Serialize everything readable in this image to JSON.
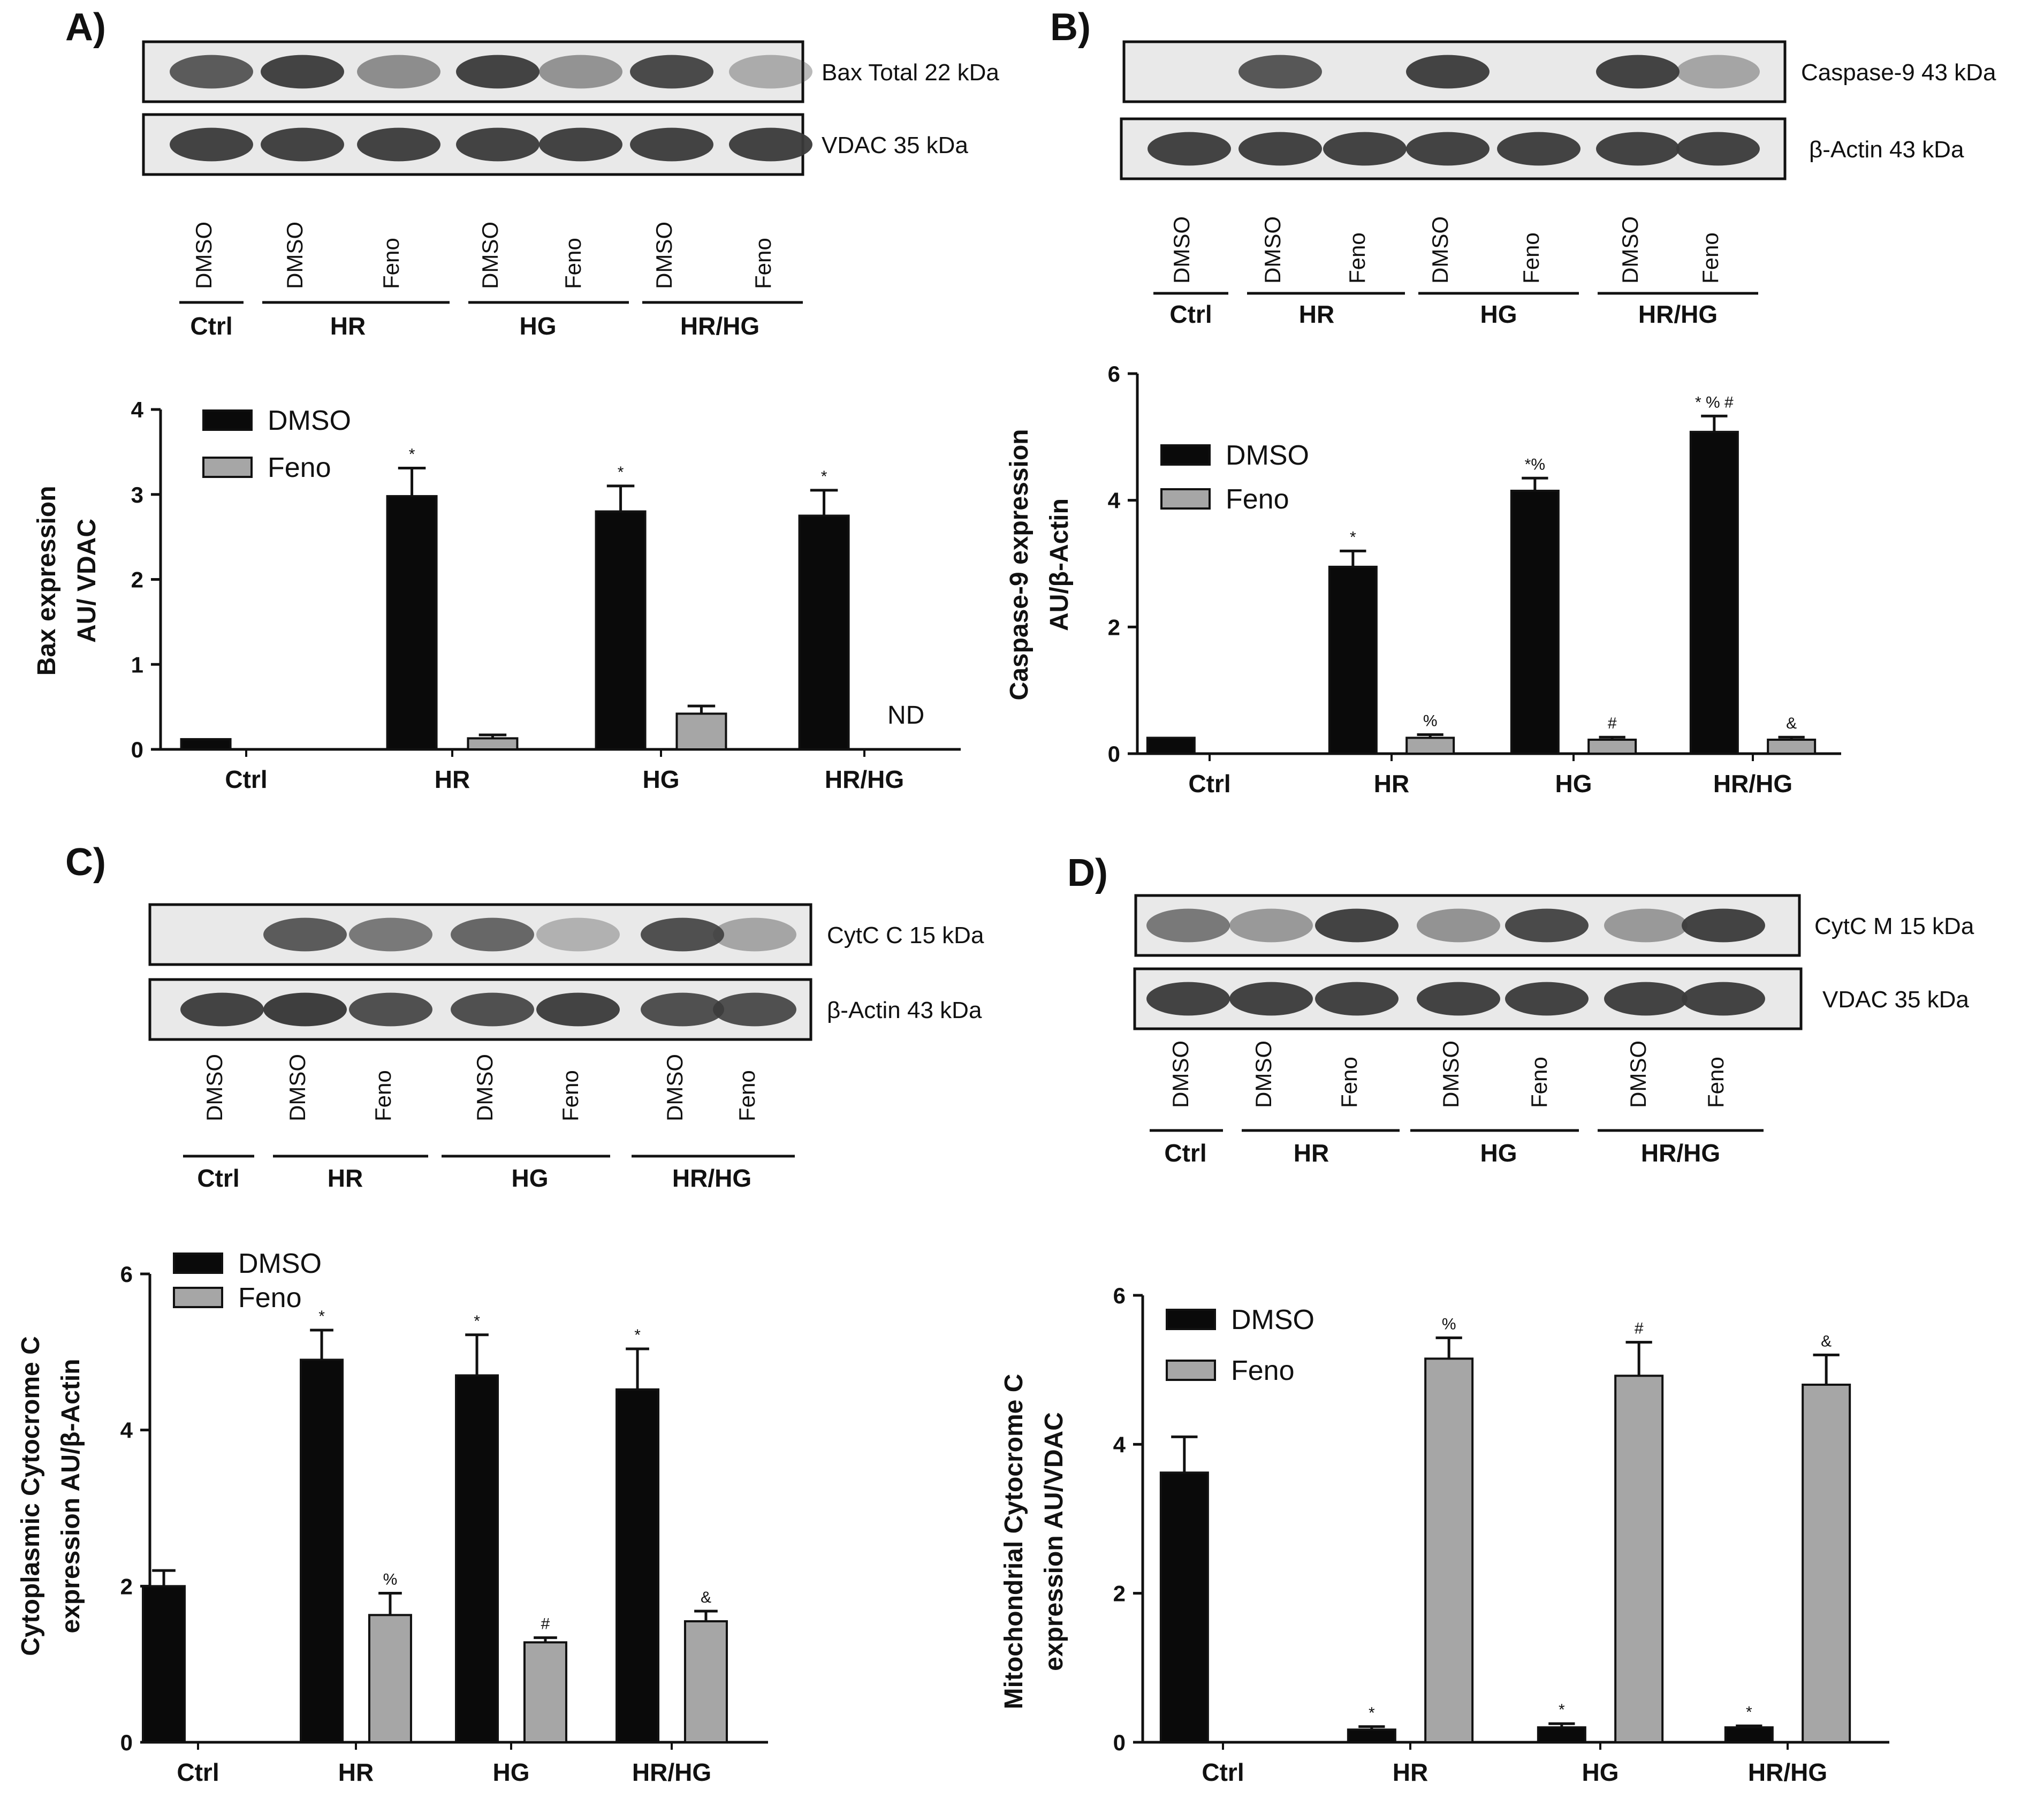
{
  "colors": {
    "dmso": "#0a0a0a",
    "feno": "#a6a6a6",
    "axis": "#111111",
    "blot_bg": "#e9e9e9",
    "band": "#3a3a3a"
  },
  "legend": {
    "dmso": "DMSO",
    "feno": "Feno"
  },
  "chart_data": [
    {
      "panel": "A)",
      "type": "bar",
      "categories": [
        "Ctrl",
        "HR",
        "HG",
        "HR/HG"
      ],
      "ylabel": [
        "Bax expression",
        "AU/ VDAC"
      ],
      "ylim": [
        0,
        4
      ],
      "yticks": [
        "0",
        "1",
        "2",
        "3",
        "4"
      ],
      "series": [
        {
          "name": "DMSO",
          "values": [
            0.12,
            2.98,
            2.8,
            2.75
          ],
          "errors": [
            0,
            0.33,
            0.3,
            0.3
          ],
          "marks": [
            "",
            "*",
            "*",
            "*"
          ]
        },
        {
          "name": "Feno",
          "values": [
            null,
            0.13,
            0.42,
            null
          ],
          "errors": [
            0,
            0.04,
            0.09,
            0
          ],
          "marks": [
            "",
            "",
            "",
            ""
          ]
        }
      ],
      "annotation": "ND",
      "blots": [
        {
          "label": "Bax Total 22 kDa"
        },
        {
          "label": "VDAC 35 kDa"
        }
      ],
      "lanes": [
        "DMSO",
        "DMSO",
        "Feno",
        "DMSO",
        "Feno",
        "DMSO",
        "Feno"
      ],
      "groups": [
        "Ctrl",
        "HR",
        "HG",
        "HR/HG"
      ]
    },
    {
      "panel": "B)",
      "type": "bar",
      "categories": [
        "Ctrl",
        "HR",
        "HG",
        "HR/HG"
      ],
      "ylabel": [
        "Caspase-9 expression",
        "AU/β-Actin"
      ],
      "ylim": [
        0,
        6
      ],
      "yticks": [
        "0",
        "2",
        "4",
        "6"
      ],
      "series": [
        {
          "name": "DMSO",
          "values": [
            0.25,
            2.95,
            4.15,
            5.08
          ],
          "errors": [
            0,
            0.25,
            0.2,
            0.25
          ],
          "marks": [
            "",
            "*",
            "*%",
            "* % #"
          ]
        },
        {
          "name": "Feno",
          "values": [
            null,
            0.25,
            0.22,
            0.22
          ],
          "errors": [
            0,
            0.05,
            0.04,
            0.04
          ],
          "marks": [
            "",
            "%",
            "#",
            "&"
          ]
        }
      ],
      "blots": [
        {
          "label": "Caspase-9 43 kDa"
        },
        {
          "label": "β-Actin 43 kDa"
        }
      ],
      "lanes": [
        "DMSO",
        "DMSO",
        "Feno",
        "DMSO",
        "Feno",
        "DMSO",
        "Feno"
      ],
      "groups": [
        "Ctrl",
        "HR",
        "HG",
        "HR/HG"
      ]
    },
    {
      "panel": "C)",
      "type": "bar",
      "categories": [
        "Ctrl",
        "HR",
        "HG",
        "HR/HG"
      ],
      "ylabel": [
        "Cytoplasmic Cytocrome C",
        "expression AU/β-Actin"
      ],
      "ylim": [
        0,
        6
      ],
      "yticks": [
        "0",
        "2",
        "4",
        "6"
      ],
      "series": [
        {
          "name": "DMSO",
          "values": [
            2.0,
            4.9,
            4.7,
            4.52
          ],
          "errors": [
            0.2,
            0.38,
            0.52,
            0.52
          ],
          "marks": [
            "",
            "*",
            "*",
            "*"
          ]
        },
        {
          "name": "Feno",
          "values": [
            null,
            1.63,
            1.28,
            1.55
          ],
          "errors": [
            0,
            0.28,
            0.06,
            0.13
          ],
          "marks": [
            "",
            "%",
            "#",
            "&"
          ]
        }
      ],
      "blots": [
        {
          "label": "CytC C 15 kDa"
        },
        {
          "label": "β-Actin 43 kDa"
        }
      ],
      "lanes": [
        "DMSO",
        "DMSO",
        "Feno",
        "DMSO",
        "Feno",
        "DMSO",
        "Feno"
      ],
      "groups": [
        "Ctrl",
        "HR",
        "HG",
        "HR/HG"
      ]
    },
    {
      "panel": "D)",
      "type": "bar",
      "categories": [
        "Ctrl",
        "HR",
        "HG",
        "HR/HG"
      ],
      "ylabel": [
        "Mitochondrial Cytocrome C",
        "expression AU/VDAC"
      ],
      "ylim": [
        0,
        6
      ],
      "yticks": [
        "0",
        "2",
        "4",
        "6"
      ],
      "series": [
        {
          "name": "DMSO",
          "values": [
            3.62,
            0.17,
            0.2,
            0.2
          ],
          "errors": [
            0.48,
            0.04,
            0.05,
            0.02
          ],
          "marks": [
            "",
            "*",
            "*",
            "*"
          ]
        },
        {
          "name": "Feno",
          "values": [
            null,
            5.15,
            4.92,
            4.8
          ],
          "errors": [
            0,
            0.28,
            0.45,
            0.4
          ],
          "marks": [
            "",
            "%",
            "#",
            "&"
          ]
        }
      ],
      "blots": [
        {
          "label": "CytC M 15 kDa"
        },
        {
          "label": "VDAC 35 kDa"
        }
      ],
      "lanes": [
        "DMSO",
        "DMSO",
        "Feno",
        "DMSO",
        "Feno",
        "DMSO",
        "Feno"
      ],
      "groups": [
        "Ctrl",
        "HR",
        "HG",
        "HR/HG"
      ]
    }
  ]
}
